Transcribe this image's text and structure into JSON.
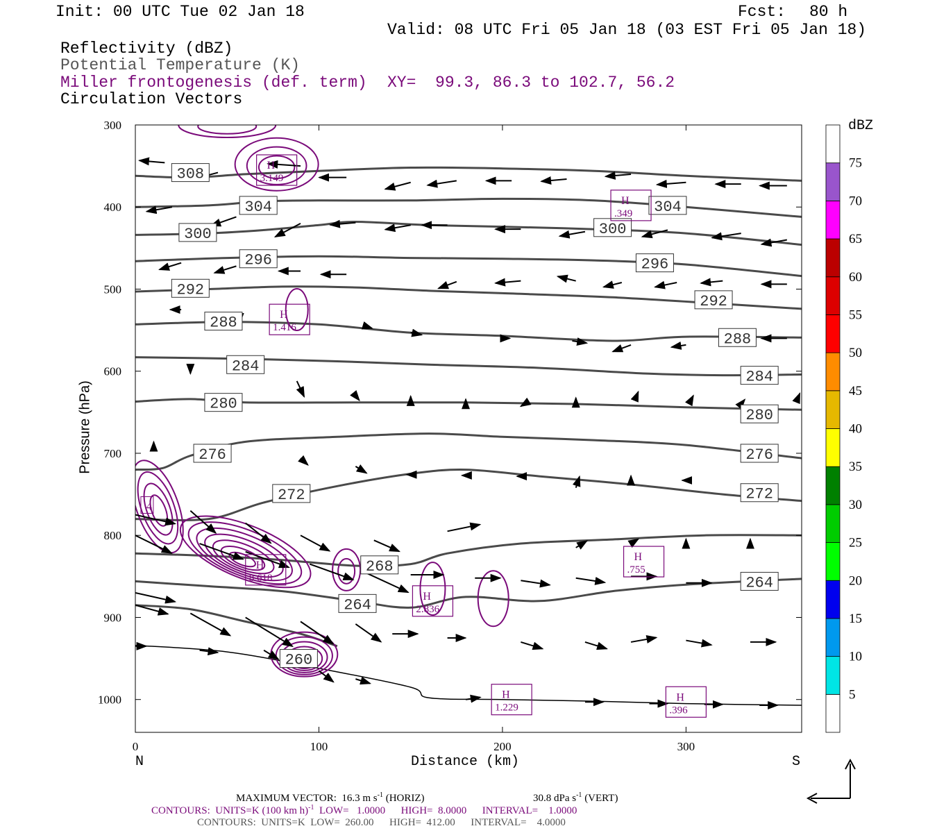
{
  "header": {
    "init": "Init: 00 UTC Tue 02 Jan 18",
    "fcst_label": "Fcst:",
    "fcst_value": "80 h",
    "valid": "Valid: 08 UTC Fri 05 Jan 18 (03 EST Fri 05 Jan 18)",
    "fields": [
      "Reflectivity (dBZ)",
      "Potential Temperature (K)",
      "Miller frontogenesis (def. term)",
      "Circulation Vectors"
    ],
    "xy": "XY=  99.3, 86.3 to 102.7, 56.2"
  },
  "colors": {
    "theta": "#4a4a4a",
    "fronto": "#7a0a7a",
    "vectors": "#000000"
  },
  "chart_data": {
    "type": "cross-section",
    "xlabel": "Distance (km)",
    "ylabel": "Pressure (hPa)",
    "xlim": [
      0,
      363
    ],
    "ylim": [
      1040,
      300
    ],
    "x_ticks": [
      0,
      100,
      200,
      300
    ],
    "y_ticks": [
      300,
      400,
      500,
      600,
      700,
      800,
      900,
      1000
    ],
    "x_end_labels": [
      "N",
      "S"
    ],
    "theta_isentropes": [
      {
        "label": "308",
        "points": [
          [
            0,
            362
          ],
          [
            30,
            364
          ],
          [
            60,
            360
          ],
          [
            100,
            356
          ],
          [
            150,
            352
          ],
          [
            200,
            353
          ],
          [
            250,
            356
          ],
          [
            300,
            362
          ],
          [
            363,
            368
          ]
        ],
        "labels_at": [
          [
            30,
            358
          ]
        ]
      },
      {
        "label": "304",
        "points": [
          [
            0,
            400
          ],
          [
            40,
            398
          ],
          [
            70,
            393
          ],
          [
            100,
            392
          ],
          [
            150,
            392
          ],
          [
            200,
            390
          ],
          [
            250,
            392
          ],
          [
            300,
            400
          ],
          [
            363,
            412
          ]
        ],
        "labels_at": [
          [
            67,
            398
          ],
          [
            290,
            398
          ]
        ]
      },
      {
        "label": "300",
        "points": [
          [
            0,
            434
          ],
          [
            40,
            432
          ],
          [
            70,
            428
          ],
          [
            100,
            422
          ],
          [
            120,
            418
          ],
          [
            160,
            422
          ],
          [
            200,
            424
          ],
          [
            250,
            427
          ],
          [
            300,
            432
          ],
          [
            363,
            446
          ]
        ],
        "labels_at": [
          [
            34,
            431
          ],
          [
            260,
            425
          ]
        ]
      },
      {
        "label": "296",
        "points": [
          [
            0,
            466
          ],
          [
            50,
            462
          ],
          [
            100,
            460
          ],
          [
            150,
            462
          ],
          [
            200,
            463
          ],
          [
            250,
            465
          ],
          [
            300,
            470
          ],
          [
            363,
            484
          ]
        ],
        "labels_at": [
          [
            67,
            463
          ],
          [
            283,
            468
          ]
        ]
      },
      {
        "label": "292",
        "points": [
          [
            0,
            503
          ],
          [
            40,
            500
          ],
          [
            80,
            497
          ],
          [
            120,
            498
          ],
          [
            160,
            502
          ],
          [
            200,
            505
          ],
          [
            260,
            510
          ],
          [
            320,
            518
          ],
          [
            363,
            524
          ]
        ],
        "labels_at": [
          [
            30,
            499
          ],
          [
            315,
            513
          ]
        ]
      },
      {
        "label": "288",
        "points": [
          [
            0,
            543
          ],
          [
            50,
            540
          ],
          [
            100,
            543
          ],
          [
            150,
            553
          ],
          [
            200,
            557
          ],
          [
            260,
            563
          ],
          [
            300,
            558
          ],
          [
            363,
            559
          ]
        ],
        "labels_at": [
          [
            48,
            539
          ],
          [
            328,
            559
          ]
        ]
      },
      {
        "label": "284",
        "points": [
          [
            0,
            583
          ],
          [
            60,
            585
          ],
          [
            110,
            588
          ],
          [
            160,
            592
          ],
          [
            220,
            596
          ],
          [
            280,
            603
          ],
          [
            320,
            605
          ],
          [
            363,
            604
          ]
        ],
        "labels_at": [
          [
            60,
            592
          ],
          [
            340,
            605
          ]
        ]
      },
      {
        "label": "280",
        "points": [
          [
            0,
            637
          ],
          [
            30,
            634
          ],
          [
            60,
            638
          ],
          [
            120,
            638
          ],
          [
            180,
            638
          ],
          [
            240,
            640
          ],
          [
            300,
            644
          ],
          [
            363,
            647
          ]
        ],
        "labels_at": [
          [
            48,
            638
          ],
          [
            340,
            652
          ]
        ]
      },
      {
        "label": "276",
        "points": [
          [
            0,
            720
          ],
          [
            15,
            718
          ],
          [
            30,
            703
          ],
          [
            60,
            686
          ],
          [
            110,
            680
          ],
          [
            160,
            676
          ],
          [
            200,
            680
          ],
          [
            250,
            684
          ],
          [
            300,
            690
          ],
          [
            363,
            706
          ]
        ],
        "labels_at": [
          [
            42,
            700
          ],
          [
            340,
            700
          ]
        ]
      },
      {
        "label": "272",
        "points": [
          [
            0,
            780
          ],
          [
            40,
            780
          ],
          [
            70,
            760
          ],
          [
            110,
            740
          ],
          [
            150,
            725
          ],
          [
            180,
            720
          ],
          [
            220,
            728
          ],
          [
            270,
            738
          ],
          [
            320,
            750
          ],
          [
            363,
            758
          ]
        ],
        "labels_at": [
          [
            85,
            749
          ],
          [
            340,
            748
          ]
        ]
      },
      {
        "label": "268",
        "points": [
          [
            0,
            822
          ],
          [
            40,
            825
          ],
          [
            80,
            830
          ],
          [
            120,
            837
          ],
          [
            150,
            835
          ],
          [
            170,
            822
          ],
          [
            210,
            810
          ],
          [
            260,
            805
          ],
          [
            310,
            800
          ],
          [
            363,
            800
          ]
        ],
        "labels_at": [
          [
            133,
            836
          ]
        ]
      },
      {
        "label": "264",
        "points": [
          [
            0,
            856
          ],
          [
            40,
            862
          ],
          [
            80,
            868
          ],
          [
            120,
            880
          ],
          [
            150,
            888
          ],
          [
            180,
            875
          ],
          [
            220,
            880
          ],
          [
            260,
            868
          ],
          [
            300,
            860
          ],
          [
            363,
            853
          ]
        ],
        "labels_at": [
          [
            121,
            883
          ],
          [
            340,
            856
          ]
        ]
      },
      {
        "label": "260",
        "points": [
          [
            0,
            885
          ],
          [
            30,
            890
          ],
          [
            60,
            905
          ],
          [
            90,
            920
          ],
          [
            110,
            935
          ]
        ],
        "labels_at": [
          [
            89,
            950
          ]
        ]
      }
    ],
    "surface": [
      [
        0,
        934
      ],
      [
        50,
        942
      ],
      [
        100,
        962
      ],
      [
        150,
        985
      ],
      [
        160,
        998
      ],
      [
        200,
        1000
      ],
      [
        250,
        1002
      ],
      [
        300,
        1005
      ],
      [
        363,
        1007
      ]
    ],
    "fronto_maxima": [
      {
        "label": "H",
        "value": "3.149",
        "x": 77,
        "p": 355
      },
      {
        "label": "H",
        "value": ".349",
        "x": 270,
        "p": 398
      },
      {
        "label": "H",
        "value": "1.416",
        "x": 84,
        "p": 537
      },
      {
        "label": "H",
        "value": "8.618",
        "x": 71,
        "p": 842
      },
      {
        "label": "H",
        "value": "2.836",
        "x": 162,
        "p": 880
      },
      {
        "label": "H",
        "value": ".755",
        "x": 277,
        "p": 832
      },
      {
        "label": "H",
        "value": "1.229",
        "x": 205,
        "p": 1000
      },
      {
        "label": "H",
        "value": ".396",
        "x": 300,
        "p": 1003
      }
    ],
    "fronto_edge_label": "4",
    "colorbar": {
      "title": "dBZ",
      "levels": [
        5,
        10,
        15,
        20,
        25,
        30,
        35,
        40,
        45,
        50,
        55,
        60,
        65,
        70,
        75
      ],
      "colors": [
        "#ffffff",
        "#00e5e5",
        "#0099ee",
        "#0000ee",
        "#00ff00",
        "#00cc00",
        "#008000",
        "#ffff00",
        "#e6b800",
        "#ff8c00",
        "#ff0000",
        "#dd0000",
        "#bb0000",
        "#ff00ff",
        "#9955cc",
        "#ffffff"
      ]
    }
  },
  "footer": {
    "max_vector": "MAXIMUM VECTOR:  16.3 m s",
    "max_vector_sup": "-1",
    "max_vector_horiz": " (HORIZ)",
    "max_vector_vert": "30.8 dPa s",
    "max_vector_vert_sup": "-1",
    "max_vector_vert_tail": " (VERT)",
    "contours1_a": "CONTOURS:  UNITS=K (100 km h)",
    "contours1_sup": "-1",
    "contours1_b": "  LOW=   1.0000      HIGH=  8.0000      INTERVAL=    1.0000",
    "contours2": "CONTOURS:  UNITS=K  LOW=  260.00      HIGH=  412.00      INTERVAL=    4.0000"
  }
}
